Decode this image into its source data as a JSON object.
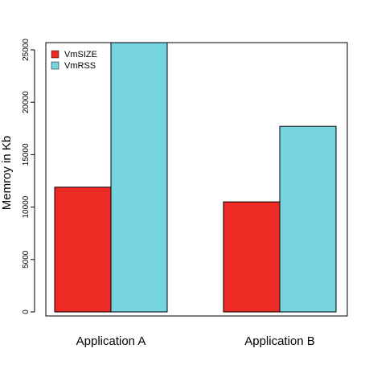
{
  "chart_data": {
    "type": "bar",
    "categories": [
      "Application A",
      "Application B"
    ],
    "series": [
      {
        "name": "VmSIZE",
        "color": "#ee2a24",
        "values": [
          11900,
          10500
        ]
      },
      {
        "name": "VmRSS",
        "color": "#76d4e0",
        "values": [
          26200,
          17700
        ]
      }
    ],
    "title": "",
    "xlabel": "",
    "ylabel": "Memroy in Kb",
    "ylim": [
      0,
      26000
    ],
    "yticks": [
      0,
      5000,
      10000,
      15000,
      20000,
      25000
    ],
    "legend_position": "top-left",
    "grid": false
  }
}
